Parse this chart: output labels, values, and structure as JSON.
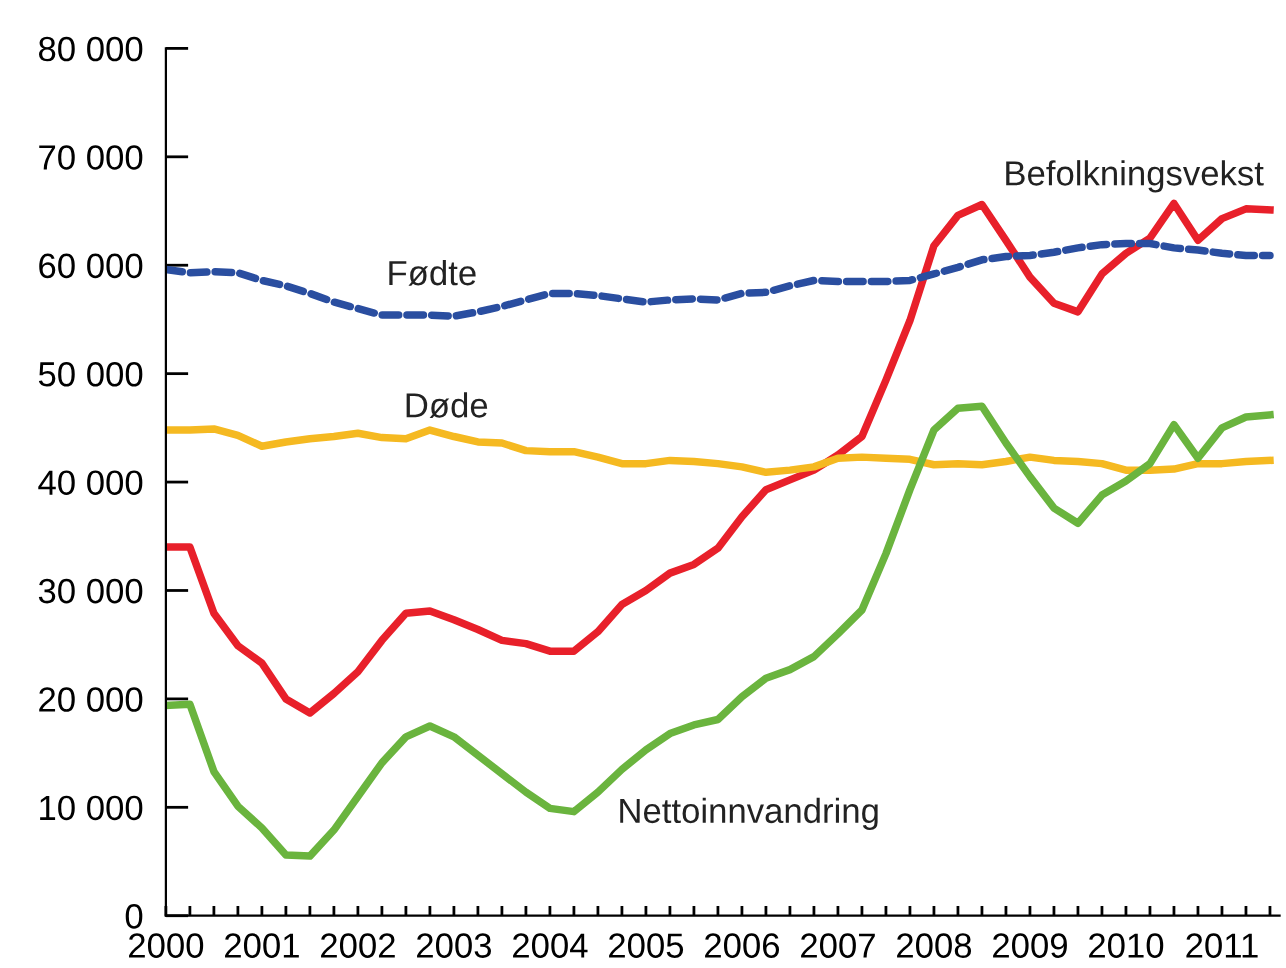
{
  "chart_data": {
    "type": "line",
    "x": [
      2000,
      2000.25,
      2000.5,
      2000.75,
      2001,
      2001.25,
      2001.5,
      2001.75,
      2002,
      2002.25,
      2002.5,
      2002.75,
      2003,
      2003.25,
      2003.5,
      2003.75,
      2004,
      2004.25,
      2004.5,
      2004.75,
      2005,
      2005.25,
      2005.5,
      2005.75,
      2006,
      2006.25,
      2006.5,
      2006.75,
      2007,
      2007.25,
      2007.5,
      2007.75,
      2008,
      2008.25,
      2008.5,
      2008.75,
      2009,
      2009.25,
      2009.5,
      2009.75,
      2010,
      2010.25,
      2010.5,
      2010.75,
      2011,
      2011.25,
      2011.5
    ],
    "series": [
      {
        "name": "Befolkningsvekst",
        "color": "#e8202a",
        "line_style": "solid",
        "values": [
          34000,
          34000,
          27900,
          24900,
          23300,
          20000,
          18700,
          20500,
          22500,
          25400,
          27900,
          28100,
          27300,
          26400,
          25400,
          25100,
          24400,
          24400,
          26200,
          28700,
          30000,
          31600,
          32400,
          33900,
          36800,
          39300,
          40200,
          41100,
          42500,
          44200,
          49400,
          54900,
          61800,
          64600,
          65600,
          62300,
          58900,
          56500,
          55700,
          59200,
          61100,
          62500,
          65700,
          62300,
          64300,
          65200,
          65100
        ]
      },
      {
        "name": "Fødte",
        "color": "#2a4ea0",
        "line_style": "dashed",
        "values": [
          59600,
          59300,
          59400,
          59300,
          58600,
          58100,
          57400,
          56600,
          56000,
          55400,
          55400,
          55400,
          55300,
          55700,
          56200,
          56800,
          57400,
          57400,
          57200,
          56900,
          56600,
          56800,
          56900,
          56800,
          57400,
          57500,
          58100,
          58600,
          58500,
          58500,
          58500,
          58600,
          59200,
          59800,
          60500,
          60800,
          60900,
          61200,
          61600,
          61900,
          62000,
          62000,
          61600,
          61400,
          61100,
          60900,
          60900
        ]
      },
      {
        "name": "Døde",
        "color": "#f5b921",
        "line_style": "solid",
        "values": [
          44800,
          44800,
          44900,
          44300,
          43300,
          43700,
          44000,
          44200,
          44500,
          44100,
          44000,
          44800,
          44200,
          43700,
          43600,
          42900,
          42800,
          42800,
          42300,
          41700,
          41700,
          42000,
          41900,
          41700,
          41400,
          40900,
          41100,
          41400,
          42200,
          42300,
          42200,
          42100,
          41600,
          41700,
          41600,
          41900,
          42300,
          42000,
          41900,
          41700,
          41100,
          41100,
          41200,
          41700,
          41700,
          41900,
          42000
        ]
      },
      {
        "name": "Nettoinnvandring",
        "color": "#6ab43e",
        "line_style": "solid",
        "values": [
          19400,
          19500,
          13300,
          10100,
          8100,
          5600,
          5500,
          7900,
          11000,
          14100,
          16500,
          17500,
          16500,
          14800,
          13100,
          11400,
          9900,
          9600,
          11400,
          13500,
          15300,
          16800,
          17600,
          18100,
          20200,
          21900,
          22700,
          23900,
          26000,
          28200,
          33400,
          39300,
          44800,
          46800,
          47000,
          43600,
          40500,
          37600,
          36200,
          38800,
          40100,
          41700,
          45300,
          42200,
          45000,
          46000,
          46200
        ]
      }
    ],
    "xlim": [
      2000,
      2011.6
    ],
    "xticks": [
      2000,
      {
        "value": 2000.25,
        "label": null
      },
      {
        "value": 2000.5,
        "label": null
      },
      {
        "value": 2000.75,
        "label": null
      },
      2001,
      {
        "value": 2001.25,
        "label": null
      },
      {
        "value": 2001.5,
        "label": null
      },
      {
        "value": 2001.75,
        "label": null
      },
      2002,
      {
        "value": 2002.25,
        "label": null
      },
      {
        "value": 2002.5,
        "label": null
      },
      {
        "value": 2002.75,
        "label": null
      },
      2003,
      {
        "value": 2003.25,
        "label": null
      },
      {
        "value": 2003.5,
        "label": null
      },
      {
        "value": 2003.75,
        "label": null
      },
      2004,
      {
        "value": 2004.25,
        "label": null
      },
      {
        "value": 2004.5,
        "label": null
      },
      {
        "value": 2004.75,
        "label": null
      },
      2005,
      {
        "value": 2005.25,
        "label": null
      },
      {
        "value": 2005.5,
        "label": null
      },
      {
        "value": 2005.75,
        "label": null
      },
      2006,
      {
        "value": 2006.25,
        "label": null
      },
      {
        "value": 2006.5,
        "label": null
      },
      {
        "value": 2006.75,
        "label": null
      },
      2007,
      {
        "value": 2007.25,
        "label": null
      },
      {
        "value": 2007.5,
        "label": null
      },
      {
        "value": 2007.75,
        "label": null
      },
      2008,
      {
        "value": 2008.25,
        "label": null
      },
      {
        "value": 2008.5,
        "label": null
      },
      {
        "value": 2008.75,
        "label": null
      },
      2009,
      {
        "value": 2009.25,
        "label": null
      },
      {
        "value": 2009.5,
        "label": null
      },
      {
        "value": 2009.75,
        "label": null
      },
      2010,
      {
        "value": 2010.25,
        "label": null
      },
      {
        "value": 2010.5,
        "label": null
      },
      {
        "value": 2010.75,
        "label": null
      },
      2011,
      {
        "value": 2011.25,
        "label": null
      },
      {
        "value": 2011.5,
        "label": null
      }
    ],
    "ylim": [
      0,
      80000
    ],
    "yticks": [
      0,
      {
        "value": 10000,
        "label": "10 000"
      },
      {
        "value": 20000,
        "label": "20 000"
      },
      {
        "value": 30000,
        "label": "30 000"
      },
      {
        "value": 40000,
        "label": "40 000"
      },
      {
        "value": 50000,
        "label": "50 000"
      },
      {
        "value": 60000,
        "label": "60 000"
      },
      {
        "value": 70000,
        "label": "70 000"
      },
      {
        "value": 80000,
        "label": "80 000"
      }
    ],
    "grid": false,
    "legend": false,
    "marker": "none"
  }
}
